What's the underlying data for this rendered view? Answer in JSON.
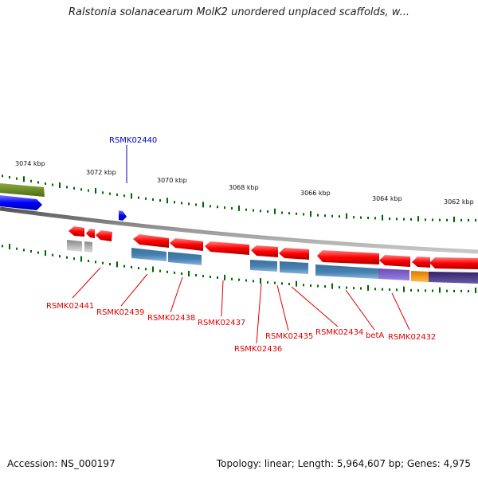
{
  "title": "Ralstonia solanacearum MolK2 unordered unplaced scaffolds, w...",
  "footer": {
    "accession": "Accession: NS_000197",
    "summary": "Topology: linear; Length: 5,964,607 bp; Genes: 4,975"
  },
  "ruler_labels": [
    "3074 kbp",
    "3072 kbp",
    "3070 kbp",
    "3068 kbp",
    "3066 kbp",
    "3064 kbp",
    "3062 kbp"
  ],
  "gene_labels": [
    {
      "text": "RSMK02440",
      "color": "#0000cc"
    },
    {
      "text": "RSMK02441",
      "color": "#dd0000"
    },
    {
      "text": "RSMK02439",
      "color": "#dd0000"
    },
    {
      "text": "RSMK02438",
      "color": "#dd0000"
    },
    {
      "text": "RSMK02437",
      "color": "#dd0000"
    },
    {
      "text": "RSMK02436",
      "color": "#dd0000"
    },
    {
      "text": "RSMK02435",
      "color": "#dd0000"
    },
    {
      "text": "RSMK02434",
      "color": "#dd0000"
    },
    {
      "text": "betA",
      "color": "#dd0000"
    },
    {
      "text": "RSMK02432",
      "color": "#dd0000"
    }
  ],
  "colors": {
    "plus_strand": "#0000ff",
    "minus_strand": "#ff0000",
    "cds": "#4682b4",
    "cds_light": "#6a9ccc",
    "purple": "#7755cc",
    "dark_purple": "#443377",
    "orange": "#ff9900",
    "olive": "#6b8e23",
    "gray": "#aaaaaa",
    "tick": "#006400",
    "axis": "#808080"
  }
}
